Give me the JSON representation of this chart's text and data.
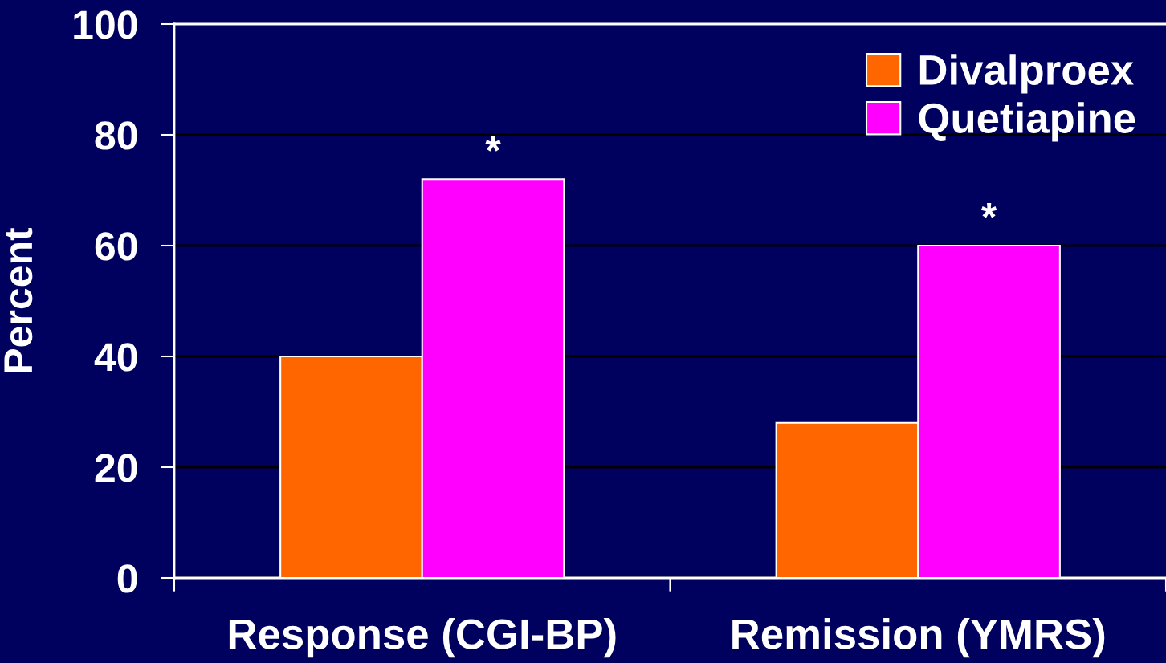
{
  "chart_data": {
    "type": "bar",
    "categories": [
      "Response (CGI-BP)",
      "Remission (YMRS)"
    ],
    "series": [
      {
        "name": "Divalproex",
        "color": "#ff6600",
        "values": [
          40,
          28
        ]
      },
      {
        "name": "Quetiapine",
        "color": "#ff00ff",
        "values": [
          72,
          60
        ]
      }
    ],
    "ylabel": "Percent",
    "ylim": [
      0,
      100
    ],
    "yticks": [
      0,
      20,
      40,
      60,
      80,
      100
    ],
    "grid": "y",
    "legend": "top right",
    "annotations": [
      {
        "text": "*",
        "x": "Response (CGI-BP)",
        "y": 72
      },
      {
        "text": "*",
        "x": "Remission (YMRS)",
        "y": 60
      }
    ]
  }
}
